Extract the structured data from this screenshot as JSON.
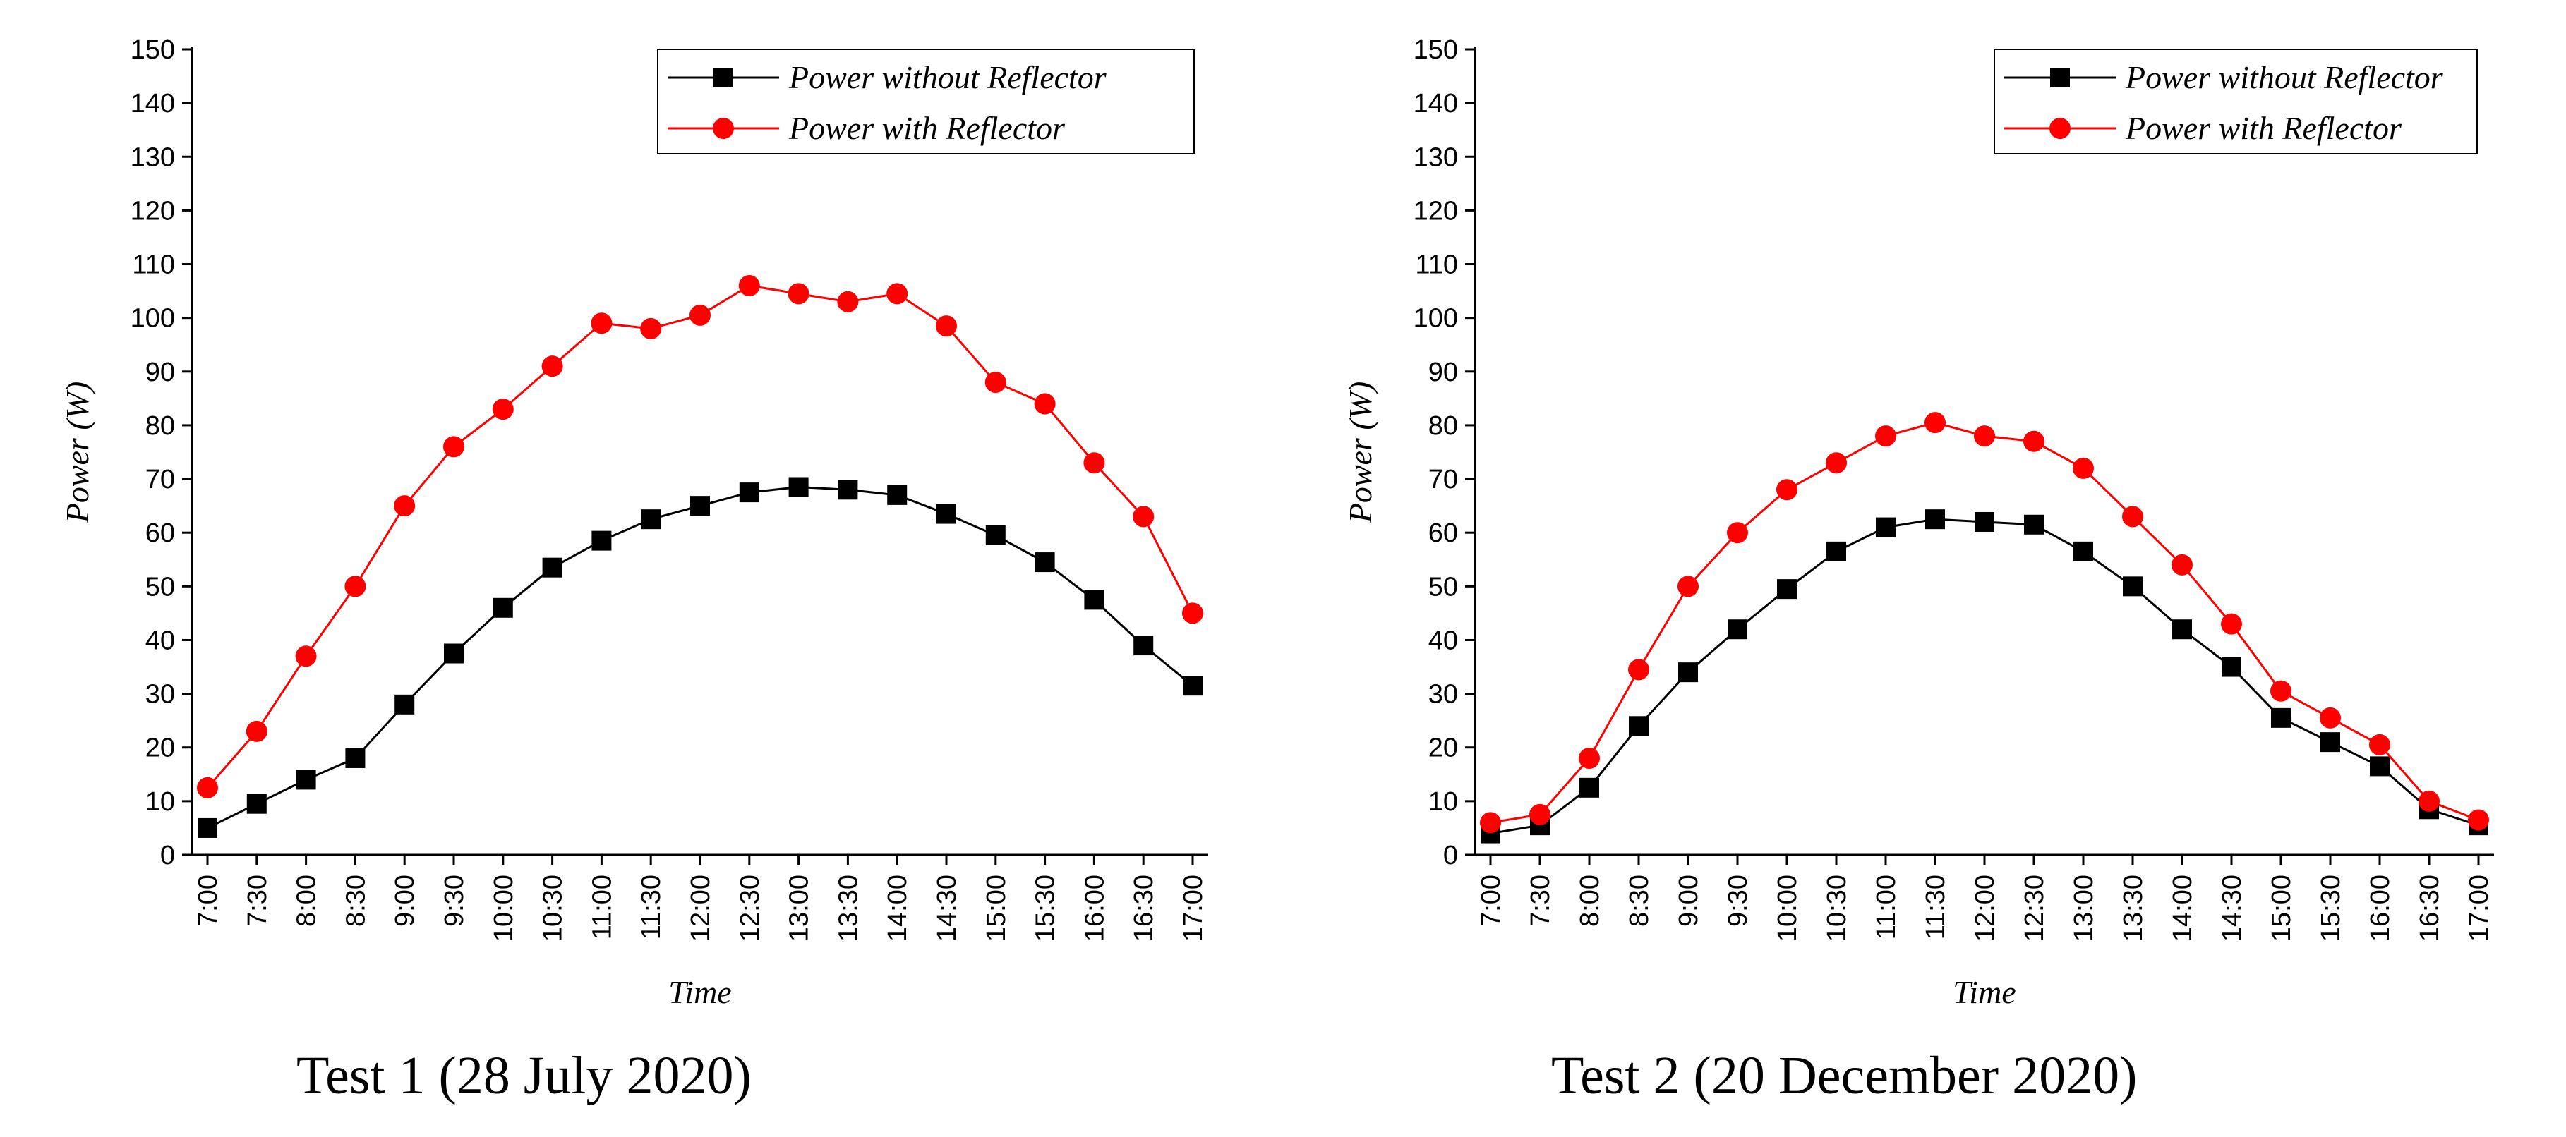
{
  "chart_data": [
    {
      "type": "line",
      "caption": "Test 1 (28 July 2020)",
      "title": "",
      "xlabel": "Time",
      "ylabel": "Power (W)",
      "ylim": [
        0,
        150
      ],
      "yticks": [
        "0",
        "10",
        "20",
        "30",
        "40",
        "50",
        "60",
        "70",
        "80",
        "90",
        "100",
        "110",
        "120",
        "130",
        "140",
        "150"
      ],
      "categories": [
        "7:00",
        "7:30",
        "8:00",
        "8:30",
        "9:00",
        "9:30",
        "10:00",
        "10:30",
        "11:00",
        "11:30",
        "12:00",
        "12:30",
        "13:00",
        "13:30",
        "14:00",
        "14:30",
        "15:00",
        "15:30",
        "16:00",
        "16:30",
        "17:00"
      ],
      "legend_position": "top-right",
      "series": [
        {
          "name": "Power without Reflector",
          "color": "#000000",
          "marker": "square",
          "values": [
            5,
            9.5,
            14,
            18,
            28,
            37.5,
            46,
            53.5,
            58.5,
            62.5,
            65,
            67.5,
            68.5,
            68,
            67,
            63.5,
            59.5,
            54.5,
            47.5,
            39,
            31.5
          ]
        },
        {
          "name": "Power with Reflector",
          "color": "#ff0000",
          "marker": "circle",
          "values": [
            12.5,
            23,
            37,
            50,
            65,
            76,
            83,
            91,
            99,
            98,
            100.5,
            106,
            104.5,
            103,
            104.5,
            98.5,
            88,
            84,
            73,
            63,
            45
          ]
        }
      ]
    },
    {
      "type": "line",
      "caption": "Test 2 (20 December 2020)",
      "title": "",
      "xlabel": "Time",
      "ylabel": "Power (W)",
      "ylim": [
        0,
        150
      ],
      "yticks": [
        "0",
        "10",
        "20",
        "30",
        "40",
        "50",
        "60",
        "70",
        "80",
        "90",
        "100",
        "110",
        "120",
        "130",
        "140",
        "150"
      ],
      "categories": [
        "7:00",
        "7:30",
        "8:00",
        "8:30",
        "9:00",
        "9:30",
        "10:00",
        "10:30",
        "11:00",
        "11:30",
        "12:00",
        "12:30",
        "13:00",
        "13:30",
        "14:00",
        "14:30",
        "15:00",
        "15:30",
        "16:00",
        "16:30",
        "17:00"
      ],
      "legend_position": "top-right",
      "series": [
        {
          "name": "Power without Reflector",
          "color": "#000000",
          "marker": "square",
          "values": [
            4,
            5.5,
            12.5,
            24,
            34,
            42,
            49.5,
            56.5,
            61,
            62.5,
            62,
            61.5,
            56.5,
            50,
            42,
            35,
            25.5,
            21,
            16.5,
            8.5,
            5.5
          ]
        },
        {
          "name": "Power with Reflector",
          "color": "#ff0000",
          "marker": "circle",
          "values": [
            6,
            7.5,
            18,
            34.5,
            50,
            60,
            68,
            73,
            78,
            80.5,
            78,
            77,
            72,
            63,
            54,
            43,
            30.5,
            25.5,
            20.5,
            10,
            6.5
          ]
        }
      ]
    }
  ]
}
